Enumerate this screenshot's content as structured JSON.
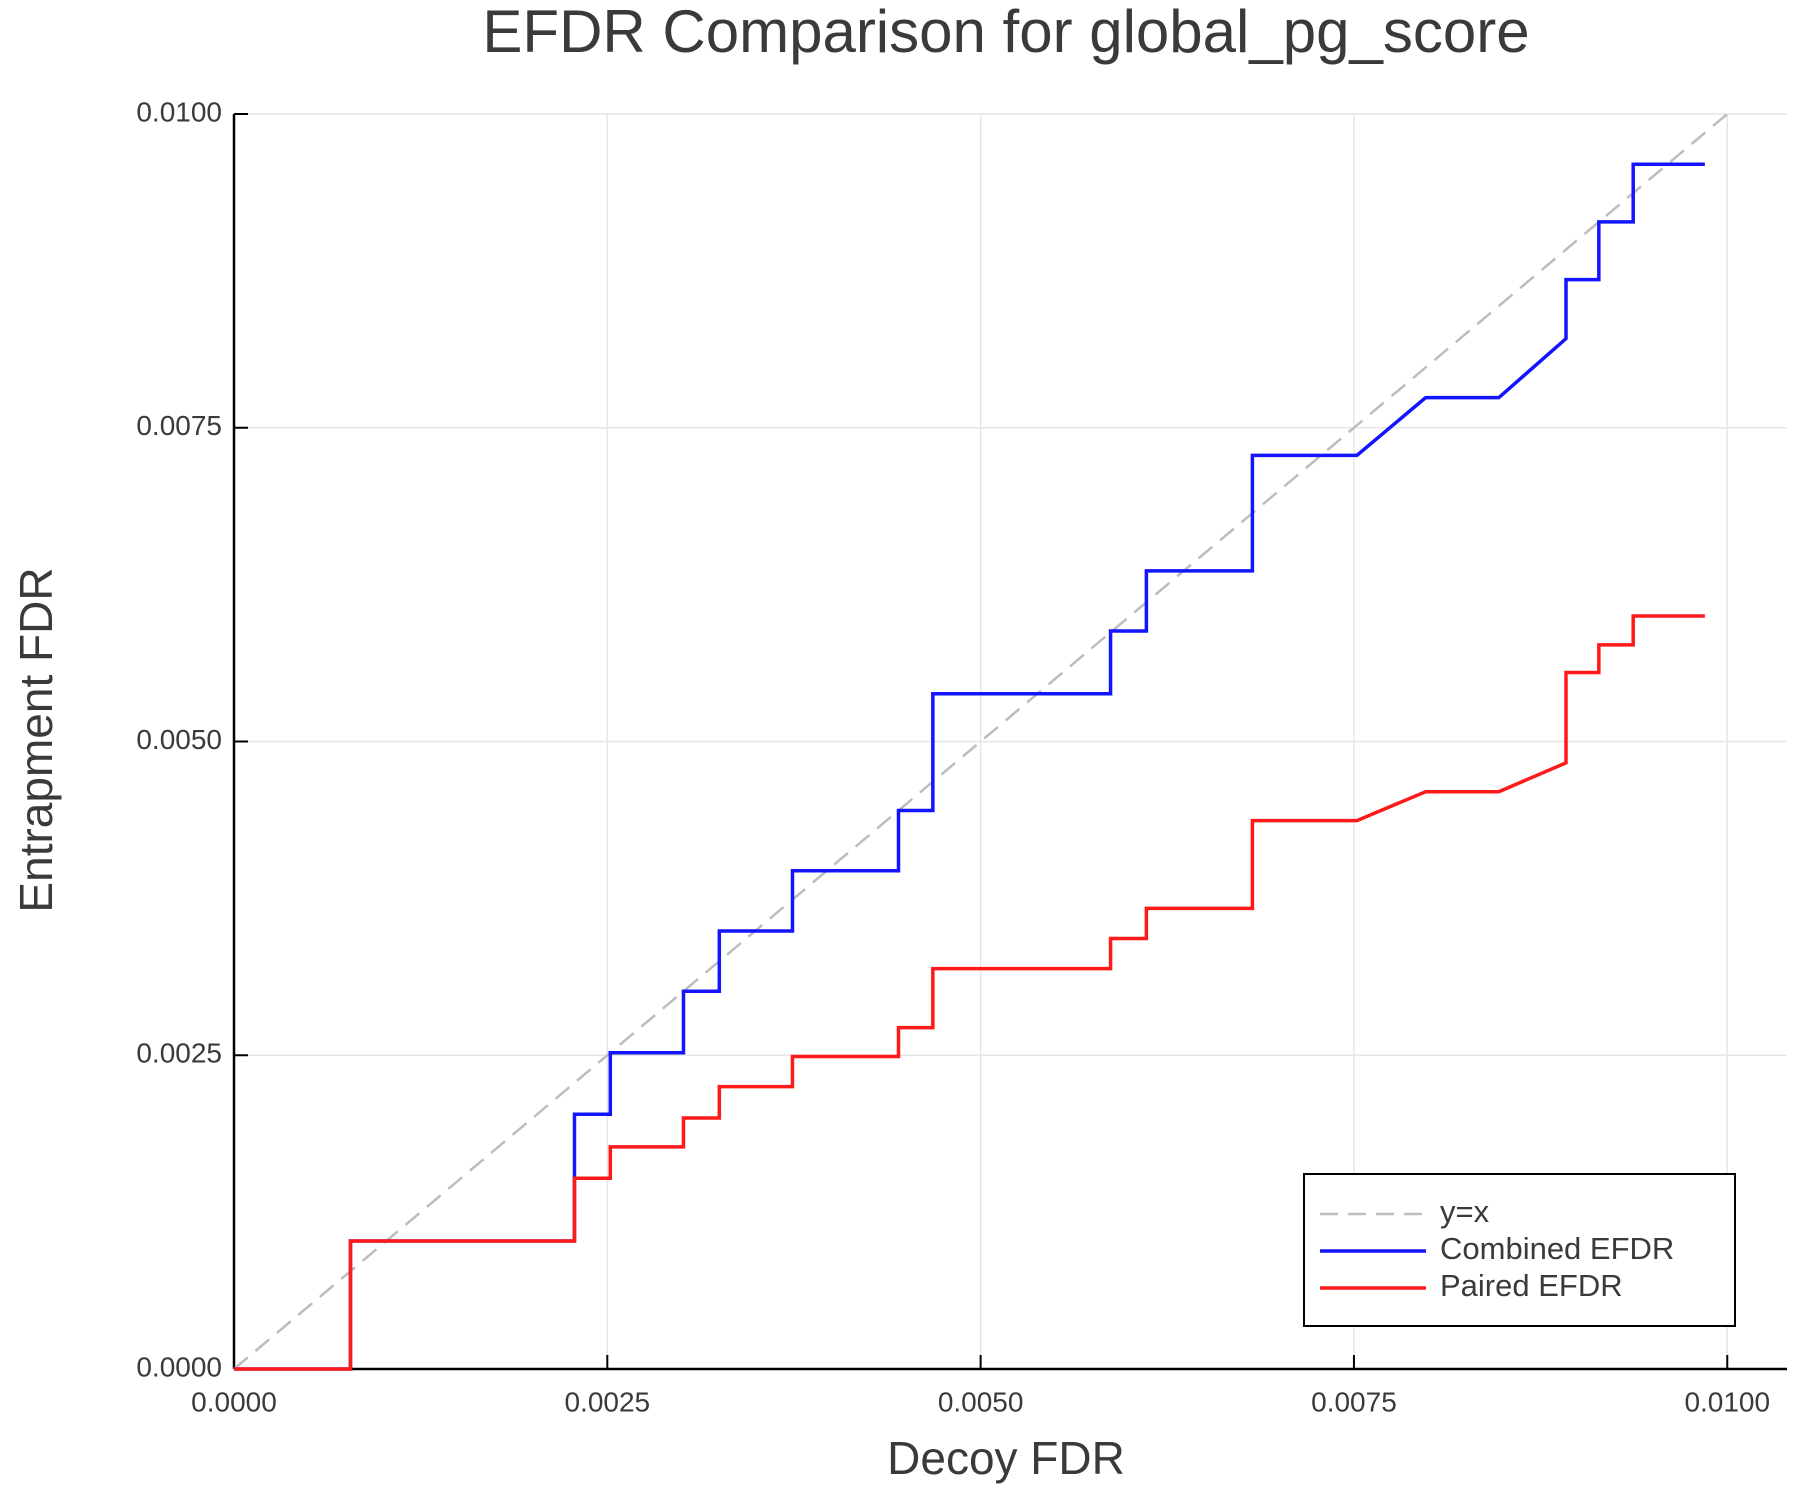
{
  "chart_data": {
    "type": "line",
    "title": "EFDR Comparison for global_pg_score",
    "x_label": "Decoy FDR",
    "y_label": "Entrapment FDR",
    "xlim": [
      0,
      0.0104
    ],
    "ylim": [
      0,
      0.01
    ],
    "xticks": [
      {
        "value": 0,
        "label": "0.0000"
      },
      0.0025,
      {
        "value": 0.005,
        "label": "0.0050"
      },
      0.0075,
      {
        "value": 0.01,
        "label": "0.0100"
      }
    ],
    "yticks": [
      {
        "value": 0,
        "label": "0.0000"
      },
      0.0025,
      {
        "value": 0.005,
        "label": "0.0050"
      },
      0.0075,
      {
        "value": 0.01,
        "label": "0.0100"
      }
    ],
    "grid": true,
    "legend": "bottom-right",
    "series": [
      {
        "name": "y=x",
        "color": "#bdbdbd",
        "dash": true,
        "x": [
          0,
          0.01
        ],
        "values": [
          0,
          0.01
        ]
      },
      {
        "name": "Combined EFDR",
        "color": "#1414ff",
        "dash": false,
        "x": [
          0,
          0.00078,
          0.00078,
          0.00228,
          0.00228,
          0.00252,
          0.00252,
          0.00301,
          0.00301,
          0.00325,
          0.00325,
          0.00374,
          0.00374,
          0.00445,
          0.00445,
          0.00468,
          0.00468,
          0.00587,
          0.00587,
          0.00611,
          0.00611,
          0.00682,
          0.00682,
          0.00752,
          0.00798,
          0.00847,
          0.00892,
          0.00892,
          0.00914,
          0.00914,
          0.00937,
          0.00937,
          0.00985
        ],
        "values": [
          0,
          0,
          0.00102,
          0.00102,
          0.00203,
          0.00203,
          0.00252,
          0.00252,
          0.00301,
          0.00301,
          0.00349,
          0.00349,
          0.00397,
          0.00397,
          0.00445,
          0.00445,
          0.00538,
          0.00538,
          0.00588,
          0.00588,
          0.00636,
          0.00636,
          0.00728,
          0.00728,
          0.00774,
          0.00774,
          0.00821,
          0.00868,
          0.00868,
          0.00914,
          0.00914,
          0.0096,
          0.0096
        ]
      },
      {
        "name": "Paired EFDR",
        "color": "#ff1a1a",
        "dash": false,
        "x": [
          0,
          0.00078,
          0.00078,
          0.00228,
          0.00228,
          0.00252,
          0.00252,
          0.00301,
          0.00301,
          0.00325,
          0.00325,
          0.00374,
          0.00374,
          0.00445,
          0.00445,
          0.00468,
          0.00468,
          0.00587,
          0.00587,
          0.00611,
          0.00611,
          0.00682,
          0.00682,
          0.00752,
          0.00798,
          0.00847,
          0.00892,
          0.00892,
          0.00914,
          0.00914,
          0.00937,
          0.00937,
          0.00985
        ],
        "values": [
          0,
          0,
          0.00102,
          0.00102,
          0.00152,
          0.00152,
          0.00177,
          0.00177,
          0.002,
          0.002,
          0.00225,
          0.00225,
          0.00249,
          0.00249,
          0.00272,
          0.00272,
          0.00319,
          0.00319,
          0.00343,
          0.00343,
          0.00367,
          0.00367,
          0.00437,
          0.00437,
          0.0046,
          0.0046,
          0.00483,
          0.00555,
          0.00555,
          0.00577,
          0.00577,
          0.006,
          0.006
        ]
      }
    ]
  }
}
